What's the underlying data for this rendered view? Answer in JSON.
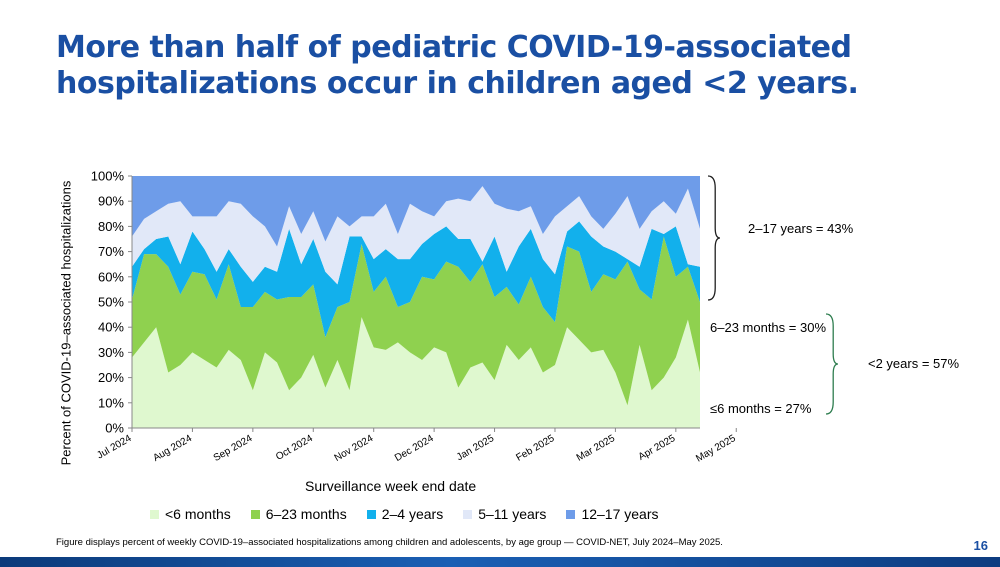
{
  "slide": {
    "title_line1": "More than half of pediatric COVID-19-associated",
    "title_line2": "hospitalizations occur in children aged <2 years.",
    "footnote": "Figure displays percent of weekly COVID-19–associated hospitalizations among children and adolescents, by age group — COVID-NET, July 2024–May 2025.",
    "page_number": "16"
  },
  "annotations": {
    "older": "2–17 years = 43%",
    "m6_23": "6–23 months = 30%",
    "under2": "<2 years = 57%",
    "le6": "≤6 months = 27%"
  },
  "chart_data": {
    "type": "area",
    "stacked": true,
    "title": "",
    "xlabel": "Surveillance week end date",
    "ylabel": "Percent of COVID-19–associated hospitalizations",
    "ylim": [
      0,
      100
    ],
    "yticks": [
      "0%",
      "10%",
      "20%",
      "30%",
      "40%",
      "50%",
      "60%",
      "70%",
      "80%",
      "90%",
      "100%"
    ],
    "xtick_labels": [
      "Jul 2024",
      "Aug 2024",
      "Sep 2024",
      "Oct 2024",
      "Nov 2024",
      "Dec 2024",
      "Jan 2025",
      "Feb 2025",
      "Mar 2025",
      "Apr 2025",
      "May 2025"
    ],
    "xtick_week_index": [
      0,
      5,
      10,
      15,
      20,
      25,
      30,
      35,
      40,
      45,
      50
    ],
    "legend_position": "bottom",
    "colors": [
      "#dff8cf",
      "#8fd14f",
      "#12b0ec",
      "#e1e8f8",
      "#6e9ce9"
    ],
    "cumulative_tops": [
      [
        28,
        34,
        40,
        22,
        25,
        30,
        27,
        24,
        31,
        27,
        15,
        30,
        26,
        15,
        20,
        29,
        16,
        27,
        15,
        44,
        32,
        31,
        34,
        30,
        27,
        32,
        30,
        16,
        24,
        26,
        19,
        33,
        27,
        32,
        22,
        25,
        40,
        35,
        30,
        31,
        22,
        9,
        33,
        15,
        20,
        28,
        43,
        22
      ],
      [
        51,
        69,
        69,
        64,
        53,
        62,
        61,
        51,
        65,
        48,
        48,
        54,
        51,
        52,
        52,
        57,
        36,
        48,
        50,
        73,
        54,
        60,
        48,
        50,
        60,
        59,
        66,
        64,
        58,
        65,
        52,
        56,
        49,
        60,
        48,
        42,
        72,
        70,
        54,
        61,
        59,
        66,
        55,
        51,
        76,
        60,
        64,
        50
      ],
      [
        64,
        71,
        75,
        76,
        65,
        78,
        71,
        62,
        71,
        64,
        58,
        64,
        62,
        79,
        65,
        75,
        62,
        57,
        76,
        76,
        67,
        71,
        67,
        67,
        73,
        77,
        80,
        75,
        75,
        66,
        76,
        62,
        72,
        79,
        67,
        61,
        78,
        82,
        76,
        72,
        70,
        67,
        64,
        79,
        77,
        80,
        65,
        64
      ],
      [
        76,
        83,
        86,
        89,
        90,
        84,
        84,
        84,
        90,
        89,
        84,
        80,
        72,
        88,
        77,
        86,
        74,
        84,
        80,
        84,
        84,
        89,
        77,
        89,
        86,
        84,
        90,
        91,
        90,
        96,
        89,
        87,
        86,
        88,
        77,
        84,
        88,
        92,
        84,
        79,
        85,
        92,
        79,
        86,
        90,
        85,
        95,
        79
      ],
      [
        100,
        100,
        100,
        100,
        100,
        100,
        100,
        100,
        100,
        100,
        100,
        100,
        100,
        100,
        100,
        100,
        100,
        100,
        100,
        100,
        100,
        100,
        100,
        100,
        100,
        100,
        100,
        100,
        100,
        100,
        100,
        100,
        100,
        100,
        100,
        100,
        100,
        100,
        100,
        100,
        100,
        100,
        100,
        100,
        100,
        100,
        100,
        100
      ]
    ],
    "series": [
      {
        "name": "<6 months",
        "color": "#dff8cf"
      },
      {
        "name": "6–23 months",
        "color": "#8fd14f"
      },
      {
        "name": "2–4 years",
        "color": "#12b0ec"
      },
      {
        "name": "5–11 years",
        "color": "#e1e8f8"
      },
      {
        "name": "12–17 years",
        "color": "#6e9ce9"
      }
    ]
  }
}
